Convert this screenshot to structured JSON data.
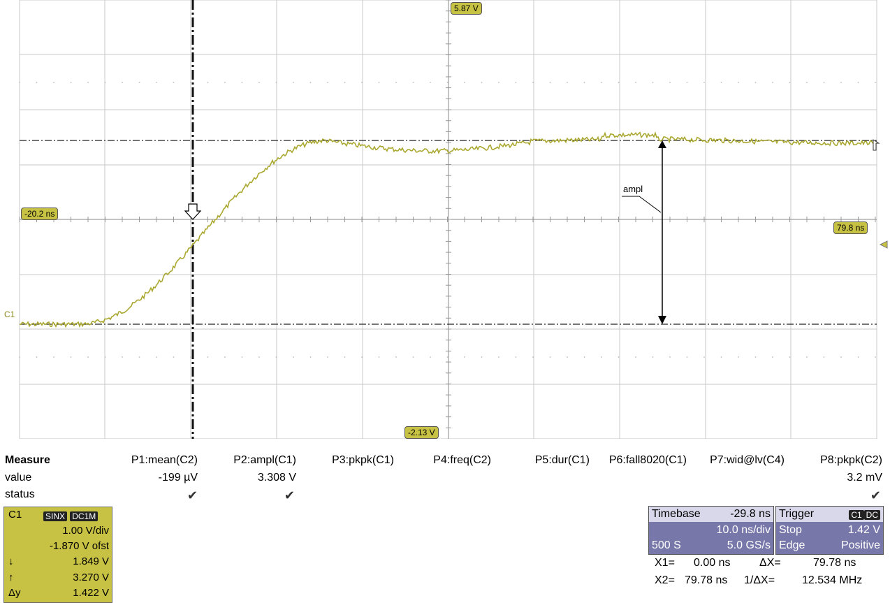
{
  "scope": {
    "channel_marker": "C1",
    "markers": {
      "top_level": "5.87 V",
      "bottom_level": "-2.13 V",
      "cursor_left": "-20.2 ns",
      "cursor_right": "79.8 ns"
    },
    "ampl_annotation": "ampl",
    "trace_color": "#aaa830"
  },
  "measure": {
    "title": "Measure",
    "row_labels": {
      "value": "value",
      "status": "status"
    },
    "params": [
      {
        "name": "P1:mean(C2)",
        "value": "-199 µV",
        "status": "ok"
      },
      {
        "name": "P2:ampl(C1)",
        "value": "3.308 V",
        "status": "ok"
      },
      {
        "name": "P3:pkpk(C1)",
        "value": "",
        "status": ""
      },
      {
        "name": "P4:freq(C2)",
        "value": "",
        "status": ""
      },
      {
        "name": "P5:dur(C1)",
        "value": "",
        "status": ""
      },
      {
        "name": "P6:fall8020(C1)",
        "value": "",
        "status": ""
      },
      {
        "name": "P7:wid@lv(C4)",
        "value": "",
        "status": ""
      },
      {
        "name": "P8:pkpk(C2)",
        "value": "3.2 mV",
        "status": "ok"
      }
    ],
    "check_glyph": "✔"
  },
  "channel": {
    "name": "C1",
    "badges": [
      "SINX",
      "DC1M"
    ],
    "vdiv": "1.00 V/div",
    "offset": "-1.870 V ofst",
    "rows": [
      {
        "label": "↓",
        "value": "1.849 V"
      },
      {
        "label": "↑",
        "value": "3.270 V"
      },
      {
        "label": "Δy",
        "value": "1.422 V"
      }
    ]
  },
  "timebase": {
    "label": "Timebase",
    "delay": "-29.8 ns",
    "tdiv": "10.0 ns/div",
    "samples": "500 S",
    "rate": "5.0 GS/s"
  },
  "trigger": {
    "label": "Trigger",
    "badges": [
      "C1",
      "DC"
    ],
    "mode": "Stop",
    "level": "1.42 V",
    "type": "Edge",
    "slope": "Positive"
  },
  "cursors": {
    "x1_label": "X1=",
    "x1": "0.00 ns",
    "dx_label": "ΔX=",
    "dx": "79.78 ns",
    "x2_label": "X2=",
    "x2": "79.78 ns",
    "inv_dx_label": "1/ΔX=",
    "inv_dx": "12.534 MHz"
  }
}
